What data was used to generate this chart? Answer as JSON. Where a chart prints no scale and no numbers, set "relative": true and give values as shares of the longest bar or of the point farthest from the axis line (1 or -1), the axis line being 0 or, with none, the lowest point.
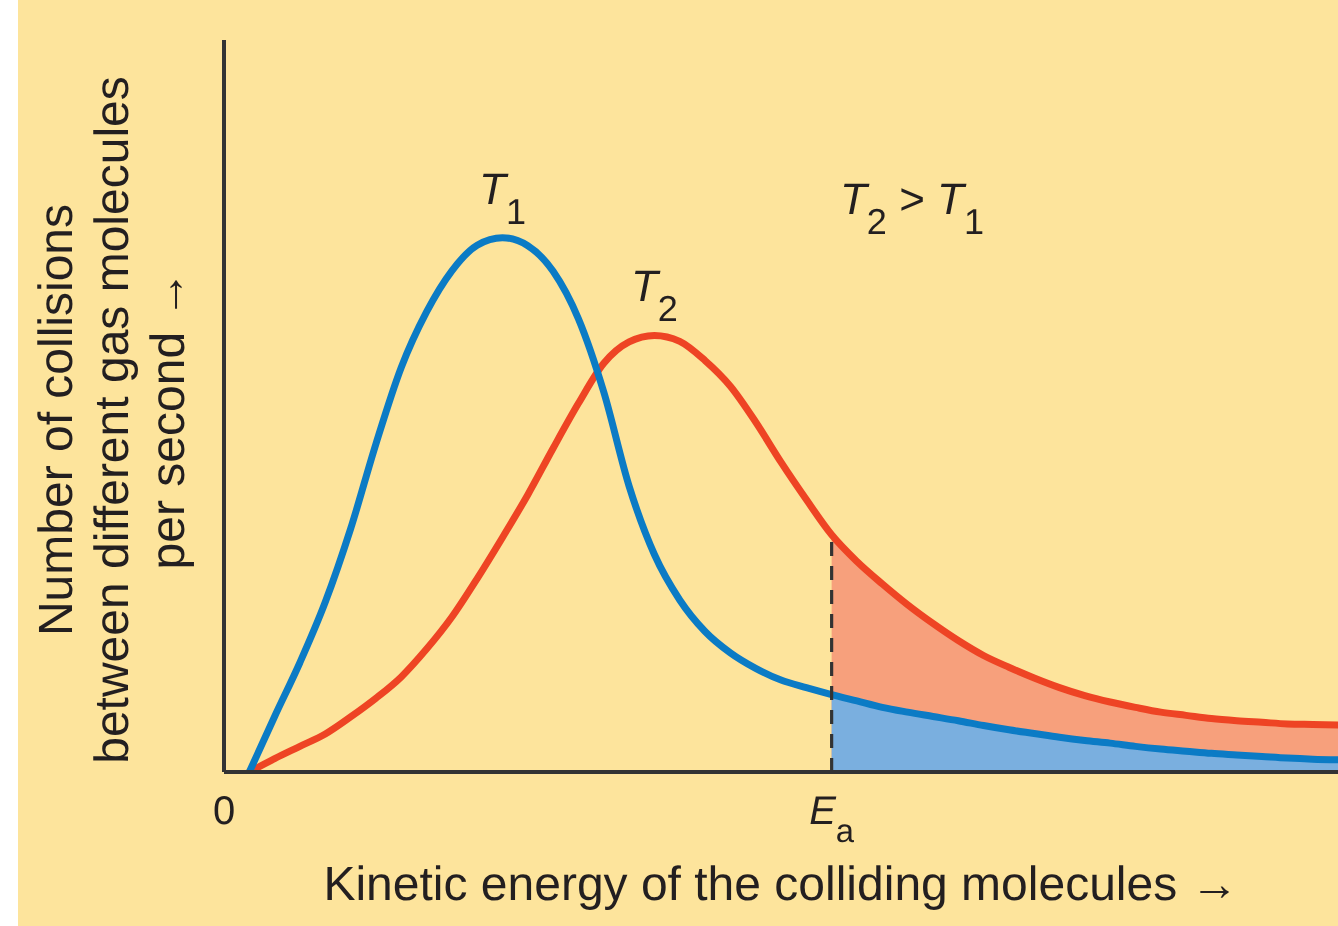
{
  "chart_data": {
    "type": "line",
    "xlabel": "Kinetic energy of the colliding molecules →",
    "ylabel": "Number of collisions\nbetween different gas molecules\nper second →",
    "annotations": [
      "T$_{2}$ > T$_{1}$"
    ],
    "relative": true,
    "categories": [
      "0",
      null,
      null,
      null,
      null,
      null,
      null,
      null,
      null,
      null,
      null,
      null,
      null,
      null,
      null,
      null,
      null,
      null,
      null,
      null,
      null,
      null,
      null,
      null,
      "E$_{a}$",
      null,
      null,
      null,
      null,
      null,
      null,
      null,
      null,
      null,
      null,
      null,
      null,
      null,
      null,
      null,
      null,
      null,
      null,
      null,
      null
    ],
    "ref_lines": [
      {
        "axis": "x",
        "value": "E$_{a}$",
        "color": "#333333",
        "line_style": "dashed"
      }
    ],
    "series": [
      {
        "type": "area",
        "color": "#f7a07c",
        "values": [
          null,
          null,
          null,
          null,
          null,
          null,
          null,
          null,
          null,
          null,
          null,
          null,
          null,
          null,
          null,
          null,
          null,
          null,
          null,
          null,
          null,
          null,
          null,
          null,
          0.444,
          0.394,
          0.352,
          0.313,
          0.278,
          0.246,
          0.218,
          0.196,
          0.176,
          0.158,
          0.143,
          0.131,
          0.121,
          0.112,
          0.106,
          0.1,
          0.096,
          0.093,
          0.09,
          0.089,
          0.088
        ]
      },
      {
        "type": "area",
        "color": "#7aafdf",
        "values": [
          null,
          null,
          null,
          null,
          null,
          null,
          null,
          null,
          null,
          null,
          null,
          null,
          null,
          null,
          null,
          null,
          null,
          null,
          null,
          null,
          null,
          null,
          null,
          null,
          0.145,
          0.133,
          0.121,
          0.112,
          0.104,
          0.096,
          0.087,
          0.079,
          0.072,
          0.065,
          0.059,
          0.054,
          0.048,
          0.043,
          0.039,
          0.035,
          0.032,
          0.029,
          0.026,
          0.024,
          0.023
        ]
      },
      {
        "name": "T$_{2}$",
        "color": "#ee4424",
        "values": [
          null,
          0,
          0.025,
          0.048,
          0.071,
          0.103,
          0.138,
          0.178,
          0.23,
          0.29,
          0.362,
          0.439,
          0.519,
          0.606,
          0.69,
          0.765,
          0.805,
          0.817,
          0.806,
          0.77,
          0.722,
          0.655,
          0.58,
          0.51,
          0.444,
          0.394,
          0.352,
          0.313,
          0.278,
          0.246,
          0.218,
          0.196,
          0.176,
          0.158,
          0.143,
          0.131,
          0.121,
          0.112,
          0.106,
          0.1,
          0.096,
          0.093,
          0.09,
          0.089,
          0.088
        ]
      },
      {
        "name": "T$_{1}$",
        "color": "#0b7bc5",
        "values": [
          null,
          0,
          0.104,
          0.205,
          0.318,
          0.455,
          0.614,
          0.757,
          0.861,
          0.938,
          0.986,
          1.0,
          0.985,
          0.937,
          0.848,
          0.711,
          0.535,
          0.407,
          0.322,
          0.263,
          0.223,
          0.194,
          0.172,
          0.158,
          0.145,
          0.133,
          0.121,
          0.112,
          0.104,
          0.096,
          0.087,
          0.079,
          0.072,
          0.065,
          0.059,
          0.054,
          0.048,
          0.043,
          0.039,
          0.035,
          0.032,
          0.029,
          0.026,
          0.024,
          0.023
        ]
      }
    ]
  }
}
